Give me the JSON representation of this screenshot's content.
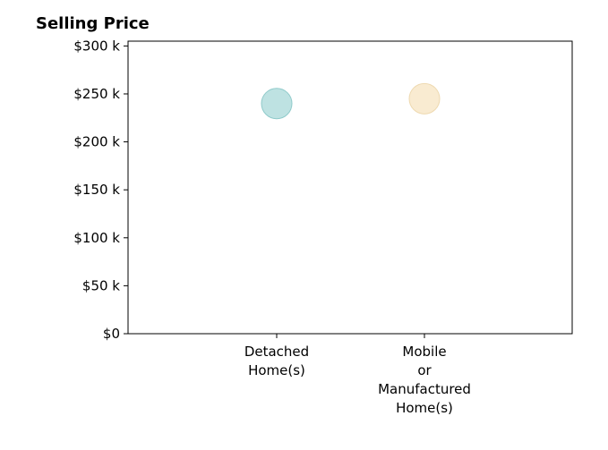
{
  "chart_data": {
    "type": "scatter",
    "title": "Selling Price",
    "xlabel": "",
    "ylabel": "",
    "categories": [
      [
        "Detached",
        "Home(s)"
      ],
      [
        "Mobile",
        "or",
        "Manufactured",
        "Home(s)"
      ]
    ],
    "values": [
      240000,
      245000
    ],
    "point_colors": [
      "#a8d8d8",
      "#f7e4c2"
    ],
    "point_stroke_colors": [
      "#8fcaca",
      "#eed9b0"
    ],
    "ylim": [
      0,
      305000
    ],
    "yticks": [
      0,
      50000,
      100000,
      150000,
      200000,
      250000,
      300000
    ],
    "ytick_labels": [
      "$0",
      "$50 k",
      "$100 k",
      "$150 k",
      "$200 k",
      "$250 k",
      "$300 k"
    ],
    "grid": false,
    "legend": "none"
  }
}
